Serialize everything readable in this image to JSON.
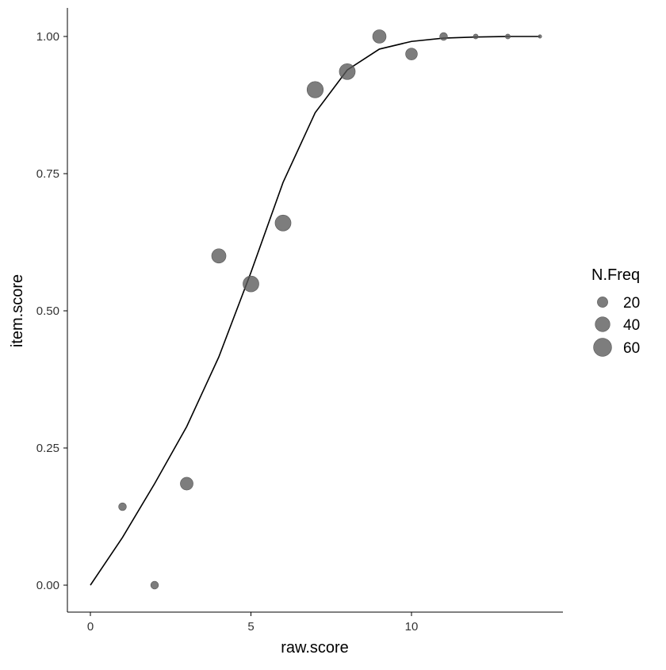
{
  "chart_data": {
    "type": "scatter",
    "title": "",
    "xlabel": "raw.score",
    "ylabel": "item.score",
    "xlim": [
      -0.7,
      14.7
    ],
    "ylim": [
      -0.05,
      1.05
    ],
    "xticks": [
      0,
      5,
      10
    ],
    "xtick_labels": [
      "0",
      "5",
      "10"
    ],
    "yticks": [
      0,
      0.25,
      0.5,
      0.75,
      1.0
    ],
    "ytick_labels": [
      "0.00",
      "0.25",
      "0.50",
      "0.75",
      "1.00"
    ],
    "grid": false,
    "points": {
      "x": [
        1,
        2,
        3,
        4,
        5,
        6,
        7,
        8,
        9,
        10,
        11,
        12,
        13,
        14
      ],
      "y": [
        0.143,
        0.0,
        0.185,
        0.6,
        0.549,
        0.66,
        0.903,
        0.936,
        1.0,
        0.968,
        1.0,
        1.0,
        1.0,
        1.0
      ],
      "size": [
        10,
        10,
        27,
        34,
        42,
        42,
        44,
        42,
        30,
        23,
        10,
        4,
        4,
        2
      ],
      "color": "#595959"
    },
    "line": {
      "x": [
        0,
        1,
        2,
        3,
        4,
        5,
        6,
        7,
        8,
        9,
        10,
        11,
        12,
        13,
        14
      ],
      "y": [
        0.0,
        0.087,
        0.185,
        0.289,
        0.416,
        0.57,
        0.734,
        0.861,
        0.939,
        0.977,
        0.991,
        0.997,
        0.999,
        1.0,
        1.0
      ],
      "color": "#000000"
    },
    "legend": {
      "title": "N.Freq",
      "placement": "right",
      "entries": [
        {
          "label": "20",
          "size": 20
        },
        {
          "label": "40",
          "size": 40
        },
        {
          "label": "60",
          "size": 60
        }
      ]
    }
  }
}
